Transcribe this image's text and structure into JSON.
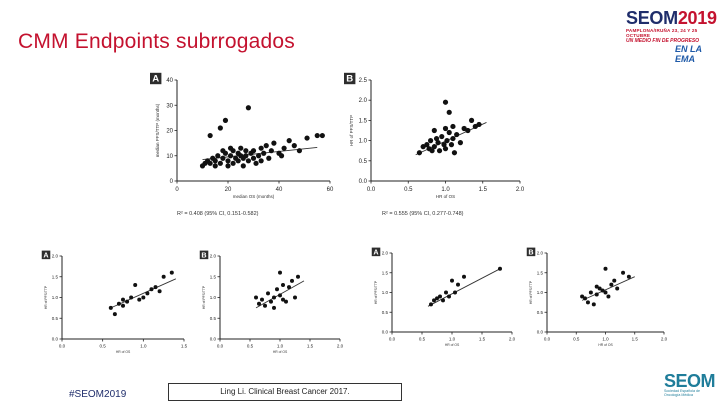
{
  "slide": {
    "title": "CMM Endpoints subrrogados",
    "brand": {
      "name_prefix": "SEOM",
      "year": "2019",
      "subtitle": "PAMPLONA/IRUÑA 23, 24 Y 25 OCTUBRE",
      "tagline": "UN MEDIO FIN DE PROGRESO",
      "tagline2": "EN LA EMA"
    },
    "footer": {
      "hashtag": "#SEOM2019",
      "citation": "Ling Li. Clinical Breast Cancer 2017.",
      "logo": "SEOM",
      "logo_sub": "Sociedad Española de Oncología Médica"
    },
    "colors": {
      "title": "#c4122f",
      "brand_blue": "#1f2d6b",
      "trend": "#333333",
      "point": "#111111"
    }
  },
  "chart_data": [
    {
      "type": "scatter",
      "panel_label": "A",
      "xlabel": "median OS (months)",
      "ylabel": "median PFS/TTP (months)",
      "xlim": [
        0,
        60
      ],
      "ylim": [
        0,
        40
      ],
      "xticks": [
        "0",
        "20",
        "40",
        "60"
      ],
      "yticks": [
        "0",
        "10",
        "20",
        "30",
        "40"
      ],
      "caption": "R² = 0.408 (95% CI, 0.151-0.582)",
      "trend": [
        [
          10,
          8.5
        ],
        [
          55,
          13.3
        ]
      ],
      "points": [
        [
          13,
          18
        ],
        [
          17,
          21
        ],
        [
          19,
          24
        ],
        [
          28,
          29
        ],
        [
          10,
          6
        ],
        [
          11,
          7
        ],
        [
          12,
          8
        ],
        [
          13,
          7
        ],
        [
          14,
          9
        ],
        [
          15,
          8
        ],
        [
          15,
          6
        ],
        [
          16,
          10
        ],
        [
          17,
          7
        ],
        [
          18,
          9
        ],
        [
          19,
          11
        ],
        [
          20,
          8
        ],
        [
          20,
          6
        ],
        [
          21,
          10
        ],
        [
          22,
          12
        ],
        [
          22,
          7
        ],
        [
          23,
          9
        ],
        [
          24,
          11
        ],
        [
          24,
          8
        ],
        [
          25,
          13
        ],
        [
          25,
          10
        ],
        [
          26,
          6
        ],
        [
          26,
          9
        ],
        [
          27,
          10
        ],
        [
          27,
          12
        ],
        [
          28,
          8
        ],
        [
          29,
          11
        ],
        [
          30,
          12
        ],
        [
          30,
          9
        ],
        [
          31,
          7
        ],
        [
          32,
          10
        ],
        [
          33,
          13
        ],
        [
          34,
          11
        ],
        [
          35,
          14
        ],
        [
          36,
          9
        ],
        [
          37,
          12
        ],
        [
          38,
          15
        ],
        [
          40,
          11
        ],
        [
          41,
          10
        ],
        [
          42,
          13
        ],
        [
          44,
          16
        ],
        [
          46,
          14
        ],
        [
          48,
          12
        ],
        [
          51,
          17
        ],
        [
          55,
          18
        ],
        [
          57,
          18
        ],
        [
          33,
          8
        ],
        [
          21,
          13
        ],
        [
          18,
          12
        ]
      ]
    },
    {
      "type": "scatter",
      "panel_label": "B",
      "xlabel": "HR of OS",
      "ylabel": "HR of PFS/TTP",
      "xlim": [
        0,
        2.0
      ],
      "ylim": [
        0,
        2.5
      ],
      "xticks": [
        "0.0",
        "0.5",
        "1.0",
        "1.5",
        "2.0"
      ],
      "yticks": [
        "0.0",
        "0.5",
        "1.0",
        "1.5",
        "2.0",
        "2.5"
      ],
      "caption": "R² = 0.555 (95% CI, 0.277-0.748)",
      "trend": [
        [
          0.6,
          0.65
        ],
        [
          1.55,
          1.45
        ]
      ],
      "points": [
        [
          1.0,
          1.95
        ],
        [
          1.05,
          1.7
        ],
        [
          0.65,
          0.7
        ],
        [
          0.7,
          0.85
        ],
        [
          0.75,
          0.9
        ],
        [
          0.78,
          0.8
        ],
        [
          0.8,
          1.0
        ],
        [
          0.82,
          0.75
        ],
        [
          0.85,
          0.85
        ],
        [
          0.88,
          1.05
        ],
        [
          0.9,
          0.95
        ],
        [
          0.92,
          0.75
        ],
        [
          0.95,
          1.1
        ],
        [
          0.98,
          0.9
        ],
        [
          1.0,
          0.8
        ],
        [
          1.02,
          1.0
        ],
        [
          1.05,
          1.2
        ],
        [
          1.08,
          0.9
        ],
        [
          1.1,
          1.05
        ],
        [
          1.12,
          0.7
        ],
        [
          1.15,
          1.15
        ],
        [
          1.2,
          0.95
        ],
        [
          1.25,
          1.3
        ],
        [
          1.3,
          1.25
        ],
        [
          1.35,
          1.5
        ],
        [
          1.4,
          1.35
        ],
        [
          1.45,
          1.4
        ],
        [
          0.85,
          1.25
        ],
        [
          1.0,
          1.3
        ],
        [
          1.1,
          1.35
        ]
      ]
    },
    {
      "type": "scatter",
      "panel_label": "A",
      "xlabel": "HR of OS",
      "ylabel": "HR of PFS/TTP",
      "xlim": [
        0,
        1.5
      ],
      "ylim": [
        0,
        2.0
      ],
      "xticks": [
        "0.0",
        "0.5",
        "1.0",
        "1.5"
      ],
      "yticks": [
        "0.0",
        "0.5",
        "1.0",
        "1.5",
        "2.0"
      ],
      "trend": [
        [
          0.6,
          0.75
        ],
        [
          1.4,
          1.45
        ]
      ],
      "points": [
        [
          0.6,
          0.75
        ],
        [
          0.65,
          0.6
        ],
        [
          0.7,
          0.85
        ],
        [
          0.75,
          0.95
        ],
        [
          0.8,
          0.9
        ],
        [
          0.85,
          1.0
        ],
        [
          0.9,
          1.3
        ],
        [
          0.95,
          0.95
        ],
        [
          1.0,
          1.0
        ],
        [
          1.05,
          1.1
        ],
        [
          1.1,
          1.2
        ],
        [
          1.15,
          1.25
        ],
        [
          1.2,
          1.15
        ],
        [
          1.25,
          1.5
        ],
        [
          1.35,
          1.6
        ],
        [
          0.75,
          0.8
        ]
      ]
    },
    {
      "type": "scatter",
      "panel_label": "B",
      "xlabel": "HR of OS",
      "ylabel": "HR of PFS/TTP",
      "xlim": [
        0,
        2.0
      ],
      "ylim": [
        0,
        2.0
      ],
      "xticks": [
        "0.0",
        "0.5",
        "1.0",
        "1.5",
        "2.0"
      ],
      "yticks": [
        "0.0",
        "0.5",
        "1.0",
        "1.5",
        "2.0"
      ],
      "trend": [
        [
          0.6,
          0.75
        ],
        [
          1.4,
          1.4
        ]
      ],
      "points": [
        [
          0.6,
          1.0
        ],
        [
          0.65,
          0.85
        ],
        [
          0.7,
          0.95
        ],
        [
          0.75,
          0.8
        ],
        [
          0.8,
          1.1
        ],
        [
          0.85,
          0.9
        ],
        [
          0.9,
          1.0
        ],
        [
          0.95,
          1.2
        ],
        [
          1.0,
          1.05
        ],
        [
          1.0,
          1.6
        ],
        [
          1.05,
          1.3
        ],
        [
          1.1,
          0.9
        ],
        [
          1.15,
          1.25
        ],
        [
          1.2,
          1.4
        ],
        [
          1.25,
          1.0
        ],
        [
          1.3,
          1.5
        ],
        [
          0.9,
          0.75
        ],
        [
          1.05,
          0.95
        ]
      ]
    },
    {
      "type": "scatter",
      "panel_label": "A",
      "xlabel": "HR of OS",
      "ylabel": "HR of PFS/TTP",
      "xlim": [
        0,
        2.0
      ],
      "ylim": [
        0,
        2.0
      ],
      "xticks": [
        "0.0",
        "0.5",
        "1.0",
        "1.5",
        "2.0"
      ],
      "yticks": [
        "0.0",
        "0.5",
        "1.0",
        "1.5",
        "2.0"
      ],
      "trend": [
        [
          0.6,
          0.65
        ],
        [
          1.8,
          1.6
        ]
      ],
      "points": [
        [
          0.65,
          0.7
        ],
        [
          0.7,
          0.8
        ],
        [
          0.75,
          0.85
        ],
        [
          0.8,
          0.9
        ],
        [
          0.85,
          0.8
        ],
        [
          0.9,
          1.0
        ],
        [
          0.95,
          0.9
        ],
        [
          1.0,
          1.3
        ],
        [
          1.05,
          1.0
        ],
        [
          1.1,
          1.2
        ],
        [
          1.2,
          1.4
        ],
        [
          1.8,
          1.6
        ]
      ]
    },
    {
      "type": "scatter",
      "panel_label": "B",
      "xlabel": "HR of OS",
      "ylabel": "HR of PFS/TTP",
      "xlim": [
        0,
        2.0
      ],
      "ylim": [
        0,
        2.0
      ],
      "xticks": [
        "0.0",
        "0.5",
        "1.0",
        "1.5",
        "2.0"
      ],
      "yticks": [
        "0.0",
        "0.5",
        "1.0",
        "1.5",
        "2.0"
      ],
      "trend": [
        [
          0.6,
          0.8
        ],
        [
          1.5,
          1.4
        ]
      ],
      "points": [
        [
          0.6,
          0.9
        ],
        [
          0.65,
          0.85
        ],
        [
          0.7,
          0.75
        ],
        [
          0.75,
          1.0
        ],
        [
          0.8,
          0.7
        ],
        [
          0.85,
          0.95
        ],
        [
          0.9,
          1.1
        ],
        [
          0.95,
          1.05
        ],
        [
          1.0,
          1.6
        ],
        [
          1.0,
          1.0
        ],
        [
          1.05,
          0.9
        ],
        [
          1.1,
          1.2
        ],
        [
          1.15,
          1.3
        ],
        [
          1.2,
          1.1
        ],
        [
          1.3,
          1.5
        ],
        [
          1.4,
          1.4
        ],
        [
          0.85,
          1.15
        ]
      ]
    }
  ]
}
